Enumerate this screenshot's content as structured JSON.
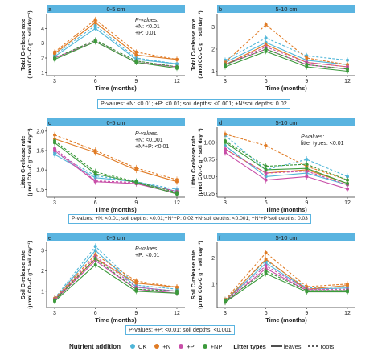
{
  "figure": {
    "box_notes": [
      "P-values: +N: <0.01; +P: <0.01; soil depths: <0.001; +N*soil depths: 0.02",
      "P-values: +N: <0.01; soil depths: <0.01;+N*+P: 0.02 +N*soil depths: <0.001; +N*+P*soil depths: 0.03",
      "P-values: +P: <0.01; soil depths: <0.001"
    ],
    "legend": {
      "title": "Nutrient addition",
      "items": [
        {
          "label": "CK",
          "color": "#4fb6d8"
        },
        {
          "label": "+N",
          "color": "#e07b25"
        },
        {
          "label": "+P",
          "color": "#c84ea8"
        },
        {
          "label": "+NP",
          "color": "#3c9a3c"
        }
      ],
      "litter_title": "Litter types",
      "litter_items": [
        {
          "label": "leaves",
          "style": "solid"
        },
        {
          "label": "roots",
          "style": "dashed"
        }
      ]
    }
  },
  "chart_data": [
    {
      "type": "line",
      "panel": "a",
      "strip": "0-5 cm",
      "ylabel_main": "Total C-release rate",
      "ylabel_unit": "(μmol CO₂-C g⁻¹ soil day⁻¹)",
      "xlabel": "Time (months)",
      "x": [
        3,
        6,
        9,
        12
      ],
      "xticks": [
        "3",
        "6",
        "9",
        "12"
      ],
      "ylim": [
        0.8,
        5.0
      ],
      "yticks": [
        1,
        2,
        3,
        4
      ],
      "pvalue_text": [
        "P-values:",
        "+N: <0.01",
        "+P: 0.01"
      ],
      "series": [
        {
          "color": "#4fb6d8",
          "dash": false,
          "values": [
            2.1,
            4.0,
            1.9,
            1.6
          ]
        },
        {
          "color": "#4fb6d8",
          "dash": true,
          "values": [
            2.2,
            4.2,
            2.0,
            1.6
          ]
        },
        {
          "color": "#e07b25",
          "dash": false,
          "values": [
            2.3,
            4.4,
            2.2,
            1.9
          ]
        },
        {
          "color": "#e07b25",
          "dash": true,
          "values": [
            2.4,
            4.6,
            2.4,
            1.9
          ]
        },
        {
          "color": "#c84ea8",
          "dash": false,
          "values": [
            2.0,
            3.1,
            1.7,
            1.4
          ]
        },
        {
          "color": "#c84ea8",
          "dash": true,
          "values": [
            2.0,
            3.2,
            1.8,
            1.4
          ]
        },
        {
          "color": "#3c9a3c",
          "dash": false,
          "values": [
            1.9,
            3.1,
            1.7,
            1.3
          ]
        },
        {
          "color": "#3c9a3c",
          "dash": true,
          "values": [
            2.0,
            3.2,
            1.8,
            1.4
          ]
        }
      ]
    },
    {
      "type": "line",
      "panel": "b",
      "strip": "5-10 cm",
      "ylabel_main": "Total C-release rate",
      "ylabel_unit": "(μmol CO₂-C g⁻¹ soil day⁻¹)",
      "xlabel": "Time (months)",
      "x": [
        3,
        6,
        9,
        12
      ],
      "xticks": [
        "3",
        "6",
        "9",
        "12"
      ],
      "ylim": [
        0.8,
        3.6
      ],
      "yticks": [
        1,
        2,
        3
      ],
      "pvalue_text": [],
      "series": [
        {
          "color": "#4fb6d8",
          "dash": false,
          "values": [
            1.4,
            2.3,
            1.5,
            1.3
          ]
        },
        {
          "color": "#4fb6d8",
          "dash": true,
          "values": [
            1.5,
            2.5,
            1.7,
            1.5
          ]
        },
        {
          "color": "#e07b25",
          "dash": false,
          "values": [
            1.3,
            2.2,
            1.4,
            1.2
          ]
        },
        {
          "color": "#e07b25",
          "dash": true,
          "values": [
            1.4,
            3.1,
            1.6,
            1.3
          ]
        },
        {
          "color": "#c84ea8",
          "dash": false,
          "values": [
            1.3,
            2.0,
            1.3,
            1.1
          ]
        },
        {
          "color": "#c84ea8",
          "dash": true,
          "values": [
            1.3,
            2.1,
            1.4,
            1.2
          ]
        },
        {
          "color": "#3c9a3c",
          "dash": false,
          "values": [
            1.2,
            1.9,
            1.2,
            1.0
          ]
        },
        {
          "color": "#3c9a3c",
          "dash": true,
          "values": [
            1.3,
            2.0,
            1.3,
            1.1
          ]
        }
      ]
    },
    {
      "type": "line",
      "panel": "c",
      "strip": "0-5 cm",
      "ylabel_main": "Litter C-release rate",
      "ylabel_unit": "(μmol CO₂-C g⁻¹ soil day⁻¹)",
      "xlabel": "Time (months)",
      "x": [
        3,
        6,
        9,
        12
      ],
      "xticks": [
        "3",
        "6",
        "9",
        "12"
      ],
      "ylim": [
        0.3,
        2.1
      ],
      "yticks": [
        0.5,
        1.0,
        1.5,
        2.0
      ],
      "ytick_labels": [
        "0.5",
        "1.0",
        "1.5",
        "2.0"
      ],
      "pvalue_text": [
        "P-values:",
        "+N: <0.001",
        "+N*+P: <0.01"
      ],
      "series": [
        {
          "color": "#4fb6d8",
          "dash": false,
          "values": [
            1.4,
            0.8,
            0.7,
            0.45
          ]
        },
        {
          "color": "#4fb6d8",
          "dash": true,
          "values": [
            1.45,
            0.85,
            0.7,
            0.5
          ]
        },
        {
          "color": "#e07b25",
          "dash": false,
          "values": [
            1.8,
            1.45,
            1.0,
            0.7
          ]
        },
        {
          "color": "#e07b25",
          "dash": true,
          "values": [
            1.9,
            1.5,
            1.05,
            0.75
          ]
        },
        {
          "color": "#c84ea8",
          "dash": false,
          "values": [
            1.5,
            0.7,
            0.65,
            0.4
          ]
        },
        {
          "color": "#c84ea8",
          "dash": true,
          "values": [
            1.55,
            0.72,
            0.68,
            0.45
          ]
        },
        {
          "color": "#3c9a3c",
          "dash": false,
          "values": [
            1.7,
            0.9,
            0.68,
            0.38
          ]
        },
        {
          "color": "#3c9a3c",
          "dash": true,
          "values": [
            1.75,
            0.95,
            0.7,
            0.42
          ]
        }
      ]
    },
    {
      "type": "line",
      "panel": "d",
      "strip": "5-10 cm",
      "ylabel_main": "Litter C-release rate",
      "ylabel_unit": "(μmol CO₂-C g⁻¹ soil day⁻¹)",
      "xlabel": "Time (months)",
      "x": [
        3,
        6,
        9,
        12
      ],
      "xticks": [
        "3",
        "6",
        "9",
        "12"
      ],
      "ylim": [
        0.2,
        1.22
      ],
      "yticks": [
        0.25,
        0.5,
        0.75,
        1.0
      ],
      "ytick_labels": [
        "0.25",
        "0.50",
        "0.75",
        "1.00"
      ],
      "pvalue_text": [
        "P-values:",
        "litter types: <0.01"
      ],
      "series": [
        {
          "color": "#4fb6d8",
          "dash": false,
          "values": [
            0.95,
            0.5,
            0.55,
            0.38
          ]
        },
        {
          "color": "#4fb6d8",
          "dash": true,
          "values": [
            1.1,
            0.6,
            0.75,
            0.5
          ]
        },
        {
          "color": "#e07b25",
          "dash": false,
          "values": [
            0.9,
            0.55,
            0.6,
            0.4
          ]
        },
        {
          "color": "#e07b25",
          "dash": true,
          "values": [
            1.12,
            0.95,
            0.65,
            0.45
          ]
        },
        {
          "color": "#c84ea8",
          "dash": false,
          "values": [
            0.85,
            0.45,
            0.5,
            0.32
          ]
        },
        {
          "color": "#c84ea8",
          "dash": true,
          "values": [
            0.9,
            0.55,
            0.58,
            0.38
          ]
        },
        {
          "color": "#3c9a3c",
          "dash": false,
          "values": [
            1.0,
            0.6,
            0.62,
            0.4
          ]
        },
        {
          "color": "#3c9a3c",
          "dash": true,
          "values": [
            1.02,
            0.65,
            0.68,
            0.45
          ]
        }
      ]
    },
    {
      "type": "line",
      "panel": "e",
      "strip": "0-5 cm",
      "ylabel_main": "Soil C-release rate",
      "ylabel_unit": "(μmol CO₂-C g⁻¹ soil day⁻¹)",
      "xlabel": "Time (months)",
      "x": [
        3,
        6,
        9,
        12
      ],
      "xticks": [
        "3",
        "6",
        "9",
        "12"
      ],
      "ylim": [
        0.2,
        3.4
      ],
      "yticks": [
        1,
        2,
        3
      ],
      "pvalue_text": [
        "P-values:",
        "+P: <0.01"
      ],
      "series": [
        {
          "color": "#4fb6d8",
          "dash": false,
          "values": [
            0.6,
            3.0,
            1.2,
            1.0
          ]
        },
        {
          "color": "#4fb6d8",
          "dash": true,
          "values": [
            0.65,
            3.2,
            1.3,
            1.1
          ]
        },
        {
          "color": "#e07b25",
          "dash": false,
          "values": [
            0.6,
            2.6,
            1.4,
            1.2
          ]
        },
        {
          "color": "#e07b25",
          "dash": true,
          "values": [
            0.65,
            2.8,
            1.5,
            1.2
          ]
        },
        {
          "color": "#c84ea8",
          "dash": false,
          "values": [
            0.55,
            2.5,
            1.1,
            0.9
          ]
        },
        {
          "color": "#c84ea8",
          "dash": true,
          "values": [
            0.6,
            2.7,
            1.2,
            1.0
          ]
        },
        {
          "color": "#3c9a3c",
          "dash": false,
          "values": [
            0.5,
            2.3,
            1.0,
            0.9
          ]
        },
        {
          "color": "#3c9a3c",
          "dash": true,
          "values": [
            0.55,
            2.6,
            1.1,
            1.0
          ]
        }
      ]
    },
    {
      "type": "line",
      "panel": "f",
      "strip": "5-10 cm",
      "ylabel_main": "Soil C-release rate",
      "ylabel_unit": "(μmol CO₂-C g⁻¹ soil day⁻¹)",
      "xlabel": "Time (months)",
      "x": [
        3,
        6,
        9,
        12
      ],
      "xticks": [
        "3",
        "6",
        "9",
        "12"
      ],
      "ylim": [
        0.1,
        2.6
      ],
      "yticks": [
        1,
        2
      ],
      "pvalue_text": [],
      "series": [
        {
          "color": "#4fb6d8",
          "dash": false,
          "values": [
            0.35,
            1.8,
            0.8,
            0.85
          ]
        },
        {
          "color": "#4fb6d8",
          "dash": true,
          "values": [
            0.4,
            1.9,
            0.85,
            0.9
          ]
        },
        {
          "color": "#e07b25",
          "dash": false,
          "values": [
            0.35,
            1.95,
            0.8,
            0.95
          ]
        },
        {
          "color": "#e07b25",
          "dash": true,
          "values": [
            0.4,
            2.2,
            0.9,
            1.0
          ]
        },
        {
          "color": "#c84ea8",
          "dash": false,
          "values": [
            0.3,
            1.6,
            0.75,
            0.75
          ]
        },
        {
          "color": "#c84ea8",
          "dash": true,
          "values": [
            0.35,
            1.7,
            0.8,
            0.8
          ]
        },
        {
          "color": "#3c9a3c",
          "dash": false,
          "values": [
            0.3,
            1.4,
            0.7,
            0.7
          ]
        },
        {
          "color": "#3c9a3c",
          "dash": true,
          "values": [
            0.35,
            1.5,
            0.75,
            0.75
          ]
        }
      ]
    }
  ]
}
